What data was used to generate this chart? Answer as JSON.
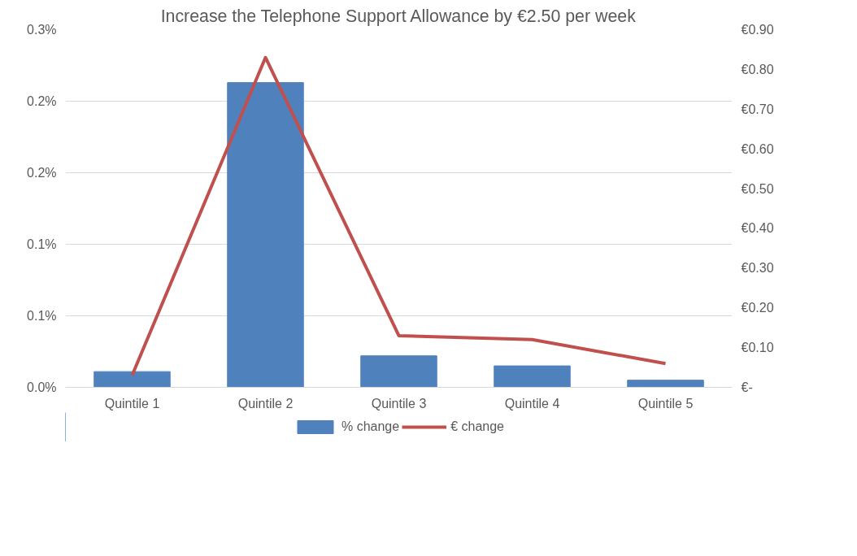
{
  "chart_data": {
    "type": "bar",
    "title": "Increase the Telephone Support Allowance by €2.50 per week",
    "categories": [
      "Quintile 1",
      "Quintile 2",
      "Quintile 3",
      "Quintile 4",
      "Quintile 5"
    ],
    "series": [
      {
        "name": "% change",
        "color": "#4f81bd",
        "values": [
          0.011,
          0.213,
          0.022,
          0.015,
          0.005
        ]
      },
      {
        "name": "€ change",
        "type": "line",
        "axis": "y2",
        "color": "#c0504d",
        "values": [
          0.03,
          0.83,
          0.13,
          0.12,
          0.06
        ]
      }
    ],
    "ylim": [
      0,
      0.25
    ],
    "yticks": [
      {
        "value": 0,
        "label": "0.0%"
      },
      {
        "value": 0.05,
        "label": "0.1%"
      },
      {
        "value": 0.1,
        "label": "0.1%"
      },
      {
        "value": 0.15,
        "label": "0.2%"
      },
      {
        "value": 0.2,
        "label": "0.2%"
      },
      {
        "value": 0.25,
        "label": "0.3%"
      }
    ],
    "y2lim": [
      0,
      0.9
    ],
    "y2ticks": [
      {
        "value": 0,
        "label": "€-"
      },
      {
        "value": 0.1,
        "label": "€0.10"
      },
      {
        "value": 0.2,
        "label": "€0.20"
      },
      {
        "value": 0.3,
        "label": "€0.30"
      },
      {
        "value": 0.4,
        "label": "€0.40"
      },
      {
        "value": 0.5,
        "label": "€0.50"
      },
      {
        "value": 0.6,
        "label": "€0.60"
      },
      {
        "value": 0.7,
        "label": "€0.70"
      },
      {
        "value": 0.8,
        "label": "€0.80"
      },
      {
        "value": 0.9,
        "label": "€0.90"
      }
    ],
    "grid": "y",
    "legend": "bottom",
    "line_style": "solid"
  }
}
